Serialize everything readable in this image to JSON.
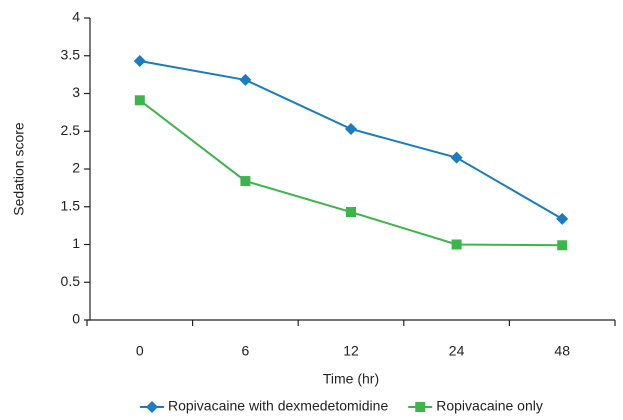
{
  "chart_data": {
    "type": "line",
    "x_label": "Time (hr)",
    "y_label": "Sedation score",
    "categories": [
      "0",
      "6",
      "12",
      "24",
      "48"
    ],
    "series": [
      {
        "name": "Ropivacaine with dexmedetomidine",
        "color": "#1a7cc1",
        "marker": "diamond",
        "values": [
          3.43,
          3.18,
          2.53,
          2.15,
          1.34
        ]
      },
      {
        "name": "Ropivacaine only",
        "color": "#3cb54a",
        "marker": "square",
        "values": [
          2.91,
          1.84,
          1.43,
          1.0,
          0.99
        ]
      }
    ],
    "ylim": [
      0,
      4
    ],
    "yticks": [
      0,
      0.5,
      1,
      1.5,
      2,
      2.5,
      3,
      3.5,
      4
    ],
    "grid": false,
    "legend": "bottom"
  }
}
